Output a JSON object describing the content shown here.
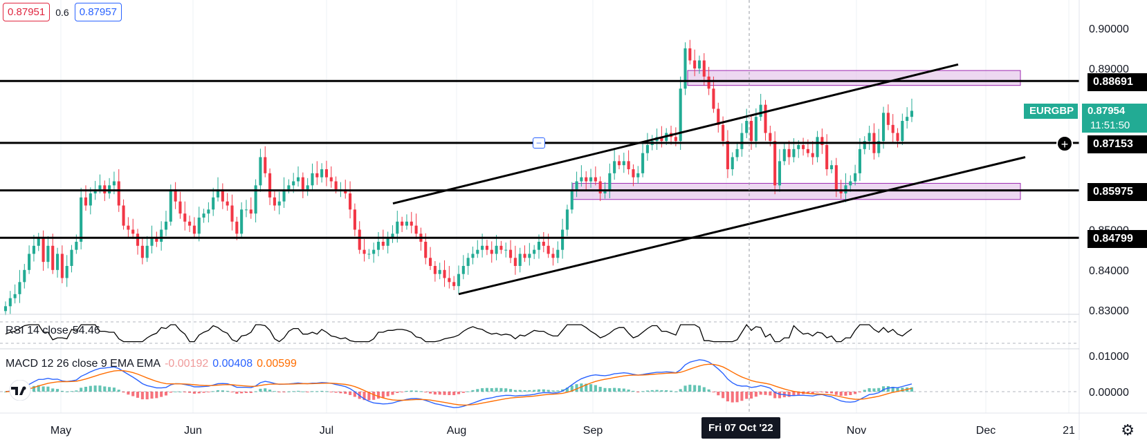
{
  "bid_ask": {
    "sell": "0.87951",
    "spread": "0.6",
    "buy": "0.87957"
  },
  "symbol": {
    "name": "EURGBP",
    "price": "0.87954",
    "countdown": "11:51:50"
  },
  "horizontal_levels": [
    "0.88691",
    "0.87153",
    "0.85975",
    "0.84799"
  ],
  "price_axis_ticks": [
    "0.90000",
    "0.89000",
    "0.85000",
    "0.84000",
    "0.83000"
  ],
  "time_axis": {
    "labels": [
      "May",
      "Jun",
      "Jul",
      "Aug",
      "Sep",
      "Nov",
      "Dec",
      "21"
    ],
    "crosshair_label": "Fri 07 Oct '22"
  },
  "rsi": {
    "label": "RSI 14 close",
    "value": "54.46"
  },
  "macd": {
    "label": "MACD 12 26 close 9 EMA EMA",
    "hist": "-0.00192",
    "macd": "0.00408",
    "signal": "0.00599",
    "ticks": [
      "0.01000",
      "0.00000"
    ]
  },
  "colors": {
    "up": "#22ab94",
    "down": "#f23645",
    "zone": "#e1bee7",
    "macd_line": "#2962ff",
    "signal_line": "#ff6d00"
  },
  "chart_data": {
    "type": "candlestick",
    "symbol": "EURGBP",
    "ylim": [
      0.829,
      0.907
    ],
    "horizontal_lines": [
      0.88691,
      0.87153,
      0.85975,
      0.84799
    ],
    "zones": [
      {
        "from": 0.8858,
        "to": 0.8895,
        "start": "Sep 22",
        "end": "Dec 05"
      },
      {
        "from": 0.8575,
        "to": 0.8615,
        "start": "Aug 26",
        "end": "Dec 05"
      }
    ],
    "trendlines": [
      {
        "from": [
          "Jul 19",
          0.8565
        ],
        "to": [
          "Nov 28",
          0.891
        ]
      },
      {
        "from": [
          "Aug 02",
          0.834
        ],
        "to": [
          "Dec 08",
          0.868
        ]
      }
    ],
    "closes": [
      0.831,
      0.833,
      0.834,
      0.837,
      0.84,
      0.844,
      0.846,
      0.848,
      0.842,
      0.846,
      0.84,
      0.844,
      0.838,
      0.841,
      0.845,
      0.847,
      0.858,
      0.856,
      0.859,
      0.86,
      0.861,
      0.859,
      0.861,
      0.862,
      0.856,
      0.851,
      0.85,
      0.849,
      0.846,
      0.843,
      0.846,
      0.848,
      0.847,
      0.85,
      0.852,
      0.86,
      0.857,
      0.854,
      0.852,
      0.851,
      0.849,
      0.853,
      0.854,
      0.855,
      0.858,
      0.86,
      0.857,
      0.856,
      0.852,
      0.849,
      0.855,
      0.855,
      0.854,
      0.861,
      0.868,
      0.864,
      0.858,
      0.856,
      0.857,
      0.86,
      0.861,
      0.862,
      0.863,
      0.86,
      0.861,
      0.864,
      0.863,
      0.865,
      0.863,
      0.862,
      0.86,
      0.86,
      0.859,
      0.855,
      0.85,
      0.845,
      0.844,
      0.844,
      0.845,
      0.847,
      0.846,
      0.848,
      0.849,
      0.852,
      0.851,
      0.852,
      0.851,
      0.849,
      0.847,
      0.843,
      0.841,
      0.839,
      0.84,
      0.838,
      0.837,
      0.836,
      0.839,
      0.841,
      0.843,
      0.844,
      0.845,
      0.846,
      0.845,
      0.844,
      0.846,
      0.845,
      0.845,
      0.843,
      0.841,
      0.844,
      0.843,
      0.844,
      0.845,
      0.847,
      0.846,
      0.844,
      0.843,
      0.845,
      0.85,
      0.855,
      0.86,
      0.862,
      0.863,
      0.862,
      0.863,
      0.862,
      0.859,
      0.86,
      0.864,
      0.867,
      0.866,
      0.867,
      0.865,
      0.863,
      0.864,
      0.869,
      0.871,
      0.872,
      0.873,
      0.872,
      0.874,
      0.873,
      0.872,
      0.885,
      0.895,
      0.892,
      0.89,
      0.892,
      0.888,
      0.885,
      0.88,
      0.876,
      0.872,
      0.865,
      0.868,
      0.87,
      0.874,
      0.877,
      0.872,
      0.878,
      0.881,
      0.874,
      0.872,
      0.861,
      0.867,
      0.87,
      0.868,
      0.87,
      0.871,
      0.87,
      0.869,
      0.868,
      0.873,
      0.871,
      0.865,
      0.866,
      0.86,
      0.859,
      0.861,
      0.862,
      0.864,
      0.87,
      0.872,
      0.874,
      0.869,
      0.872,
      0.879,
      0.876,
      0.874,
      0.872,
      0.877,
      0.878,
      0.8795
    ],
    "rsi_value": 54.46,
    "macd": {
      "macd": 0.00408,
      "signal": 0.00599,
      "hist": -0.00192
    }
  }
}
